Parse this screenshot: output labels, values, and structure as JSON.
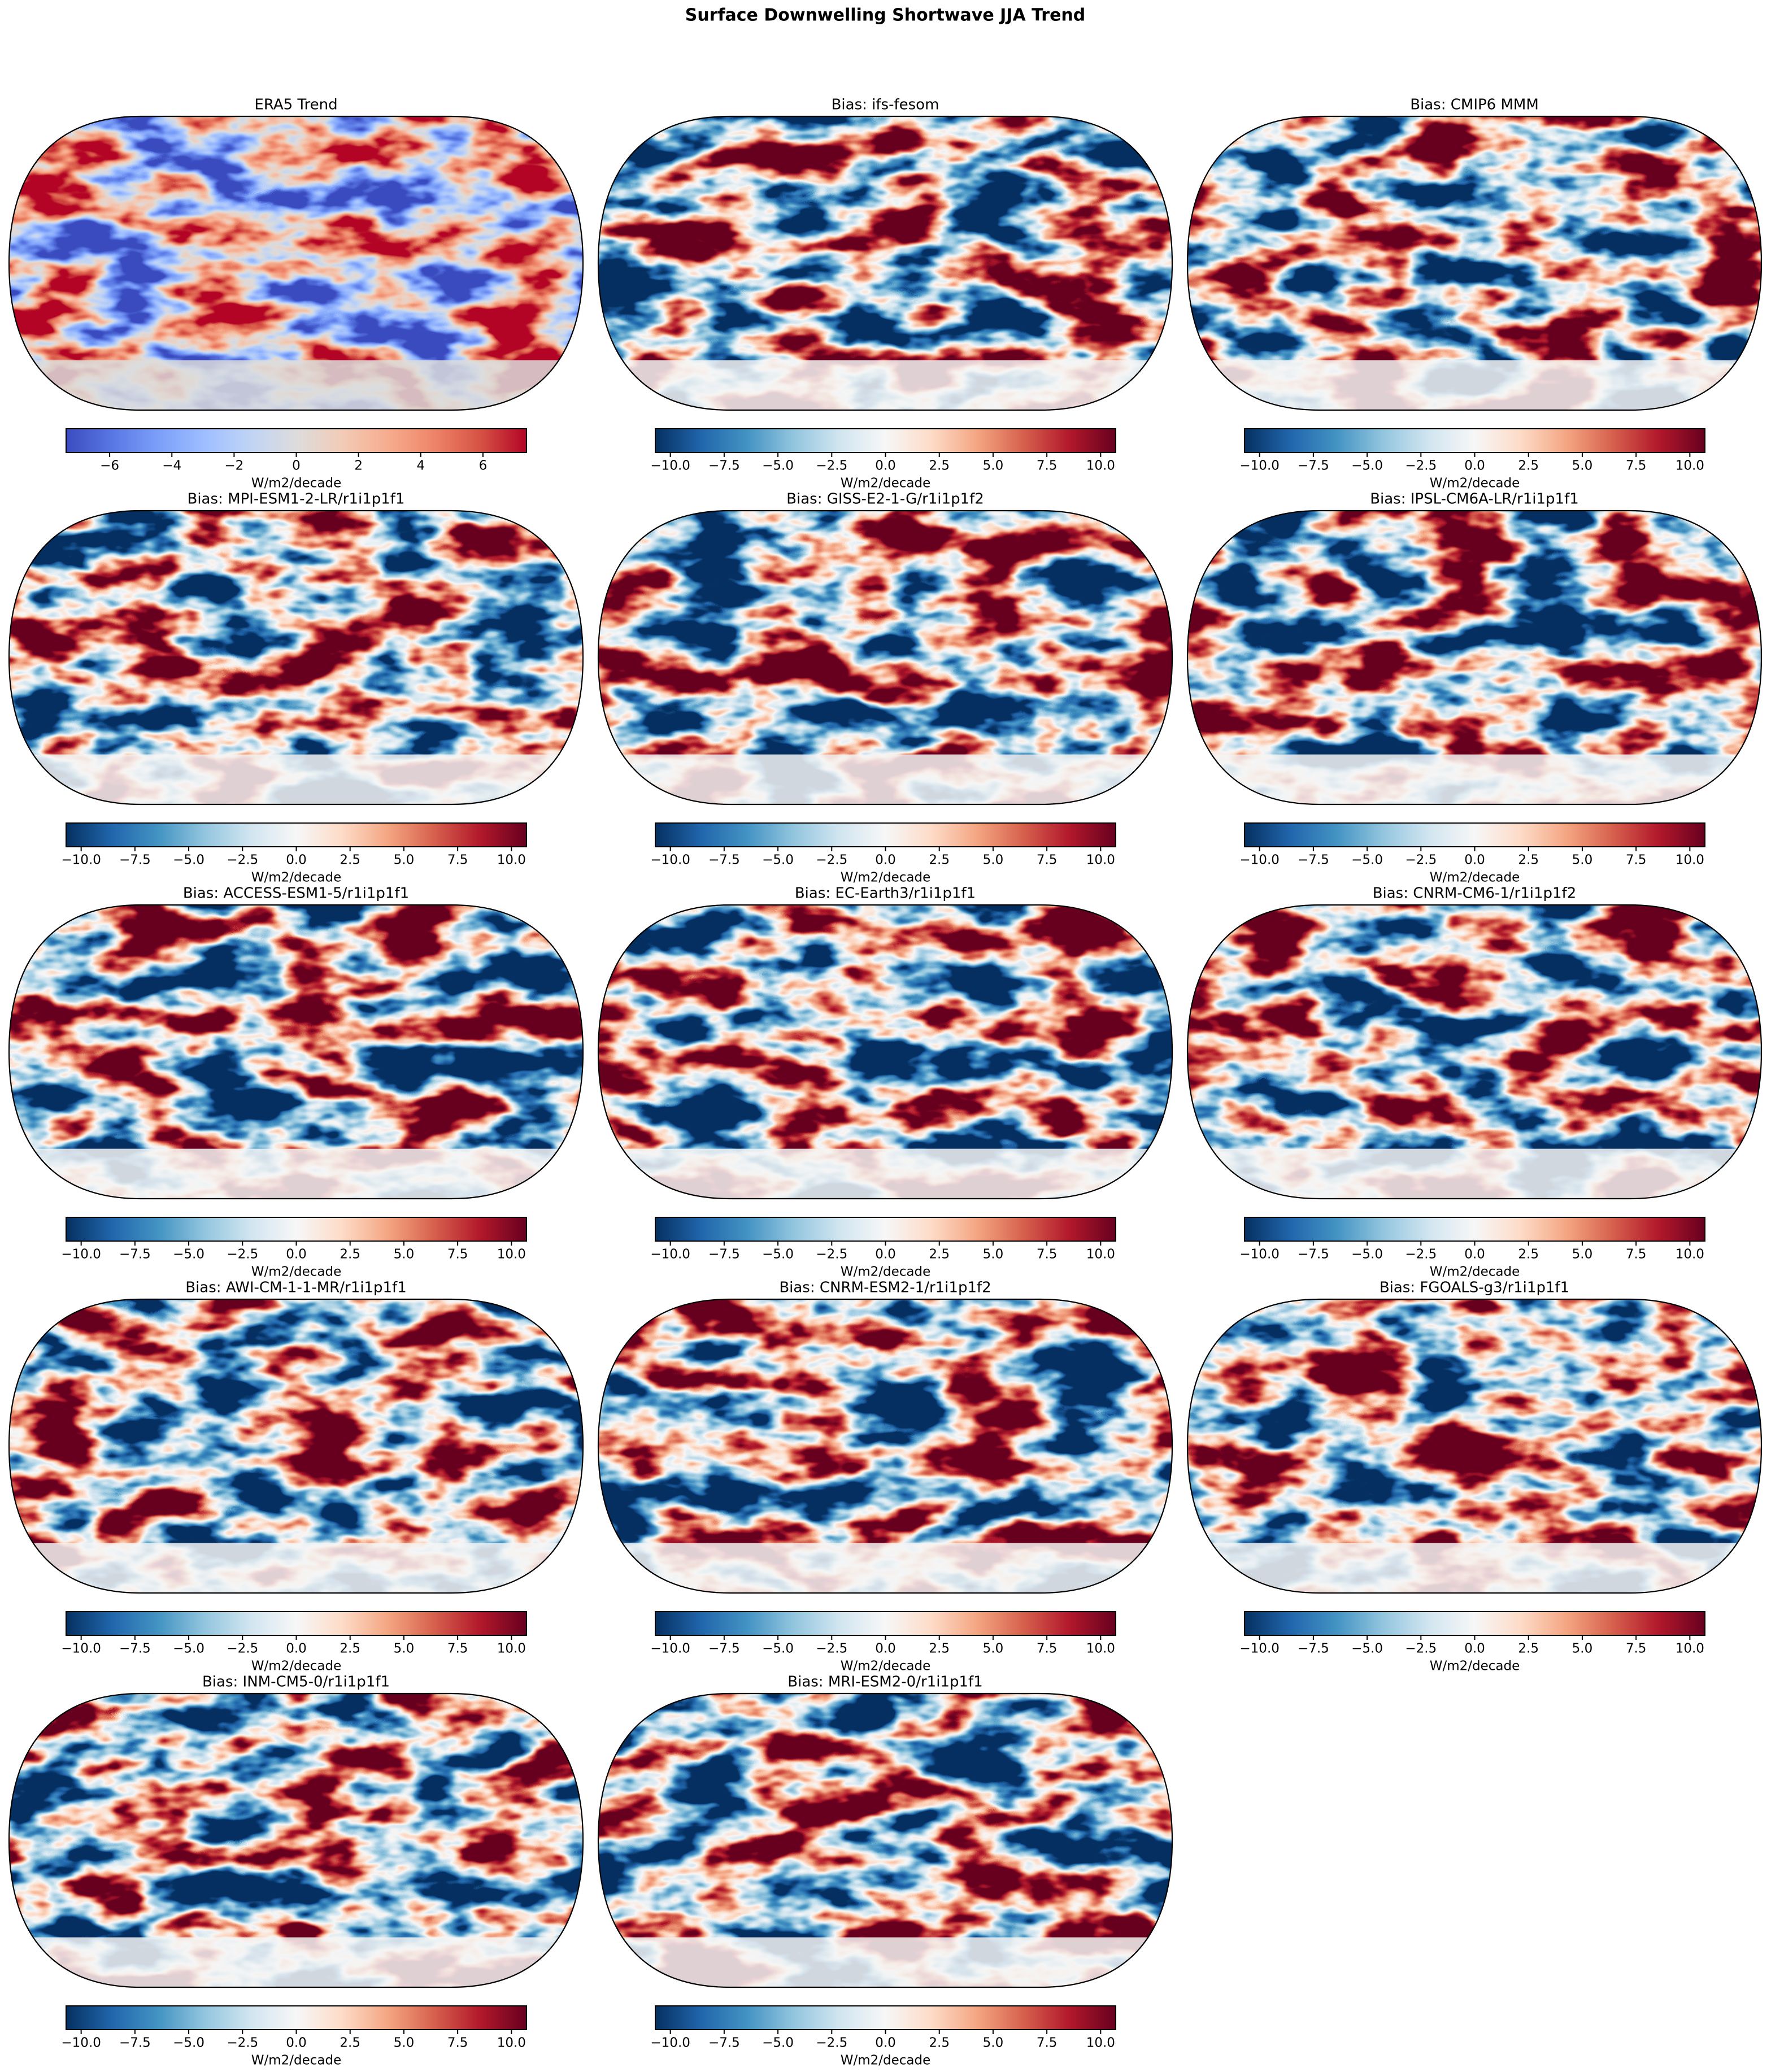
{
  "figure": {
    "title": "Surface Downwelling Shortwave JJA Trend",
    "panels": [
      {
        "title": "ERA5 Trend",
        "colormap": "coolwarm",
        "colorbar": {
          "label": "W/m2/decade",
          "lim": [
            -7.4,
            7.4
          ],
          "ticks": [
            {
              "value": -6,
              "label": "−6"
            },
            {
              "value": -4,
              "label": "−4"
            },
            {
              "value": -2,
              "label": "−2"
            },
            0,
            2,
            4,
            6
          ]
        }
      },
      {
        "title": "Bias: ifs-fesom",
        "colormap": "RdBu_r",
        "colorbar": {
          "label": "W/m2/decade",
          "lim": [
            -10.7,
            10.7
          ],
          "ticks": [
            {
              "value": -10,
              "label": "−10.0"
            },
            {
              "value": -7.5,
              "label": "−7.5"
            },
            {
              "value": -5,
              "label": "−5.0"
            },
            {
              "value": -2.5,
              "label": "−2.5"
            },
            {
              "value": 0,
              "label": "0.0"
            },
            2.5,
            {
              "value": 5,
              "label": "5.0"
            },
            7.5,
            {
              "value": 10,
              "label": "10.0"
            }
          ]
        }
      },
      {
        "title": "Bias: CMIP6 MMM",
        "colormap": "RdBu_r",
        "colorbar": {
          "label": "W/m2/decade",
          "lim": [
            -10.7,
            10.7
          ],
          "ticks": [
            {
              "value": -10,
              "label": "−10.0"
            },
            {
              "value": -7.5,
              "label": "−7.5"
            },
            {
              "value": -5,
              "label": "−5.0"
            },
            {
              "value": -2.5,
              "label": "−2.5"
            },
            {
              "value": 0,
              "label": "0.0"
            },
            2.5,
            {
              "value": 5,
              "label": "5.0"
            },
            7.5,
            {
              "value": 10,
              "label": "10.0"
            }
          ]
        }
      },
      {
        "title": "Bias: MPI-ESM1-2-LR/r1i1p1f1",
        "colormap": "RdBu_r",
        "colorbar": {
          "label": "W/m2/decade",
          "lim": [
            -10.7,
            10.7
          ],
          "ticks": [
            {
              "value": -10,
              "label": "−10.0"
            },
            {
              "value": -7.5,
              "label": "−7.5"
            },
            {
              "value": -5,
              "label": "−5.0"
            },
            {
              "value": -2.5,
              "label": "−2.5"
            },
            {
              "value": 0,
              "label": "0.0"
            },
            2.5,
            {
              "value": 5,
              "label": "5.0"
            },
            7.5,
            {
              "value": 10,
              "label": "10.0"
            }
          ]
        }
      },
      {
        "title": "Bias: GISS-E2-1-G/r1i1p1f2",
        "colormap": "RdBu_r",
        "colorbar": {
          "label": "W/m2/decade",
          "lim": [
            -10.7,
            10.7
          ],
          "ticks": [
            {
              "value": -10,
              "label": "−10.0"
            },
            {
              "value": -7.5,
              "label": "−7.5"
            },
            {
              "value": -5,
              "label": "−5.0"
            },
            {
              "value": -2.5,
              "label": "−2.5"
            },
            {
              "value": 0,
              "label": "0.0"
            },
            2.5,
            {
              "value": 5,
              "label": "5.0"
            },
            7.5,
            {
              "value": 10,
              "label": "10.0"
            }
          ]
        }
      },
      {
        "title": "Bias: IPSL-CM6A-LR/r1i1p1f1",
        "colormap": "RdBu_r",
        "colorbar": {
          "label": "W/m2/decade",
          "lim": [
            -10.7,
            10.7
          ],
          "ticks": [
            {
              "value": -10,
              "label": "−10.0"
            },
            {
              "value": -7.5,
              "label": "−7.5"
            },
            {
              "value": -5,
              "label": "−5.0"
            },
            {
              "value": -2.5,
              "label": "−2.5"
            },
            {
              "value": 0,
              "label": "0.0"
            },
            2.5,
            {
              "value": 5,
              "label": "5.0"
            },
            7.5,
            {
              "value": 10,
              "label": "10.0"
            }
          ]
        }
      },
      {
        "title": "Bias: ACCESS-ESM1-5/r1i1p1f1",
        "colormap": "RdBu_r",
        "colorbar": {
          "label": "W/m2/decade",
          "lim": [
            -10.7,
            10.7
          ],
          "ticks": [
            {
              "value": -10,
              "label": "−10.0"
            },
            {
              "value": -7.5,
              "label": "−7.5"
            },
            {
              "value": -5,
              "label": "−5.0"
            },
            {
              "value": -2.5,
              "label": "−2.5"
            },
            {
              "value": 0,
              "label": "0.0"
            },
            2.5,
            {
              "value": 5,
              "label": "5.0"
            },
            7.5,
            {
              "value": 10,
              "label": "10.0"
            }
          ]
        }
      },
      {
        "title": "Bias: EC-Earth3/r1i1p1f1",
        "colormap": "RdBu_r",
        "colorbar": {
          "label": "W/m2/decade",
          "lim": [
            -10.7,
            10.7
          ],
          "ticks": [
            {
              "value": -10,
              "label": "−10.0"
            },
            {
              "value": -7.5,
              "label": "−7.5"
            },
            {
              "value": -5,
              "label": "−5.0"
            },
            {
              "value": -2.5,
              "label": "−2.5"
            },
            {
              "value": 0,
              "label": "0.0"
            },
            2.5,
            {
              "value": 5,
              "label": "5.0"
            },
            7.5,
            {
              "value": 10,
              "label": "10.0"
            }
          ]
        }
      },
      {
        "title": "Bias: CNRM-CM6-1/r1i1p1f2",
        "colormap": "RdBu_r",
        "colorbar": {
          "label": "W/m2/decade",
          "lim": [
            -10.7,
            10.7
          ],
          "ticks": [
            {
              "value": -10,
              "label": "−10.0"
            },
            {
              "value": -7.5,
              "label": "−7.5"
            },
            {
              "value": -5,
              "label": "−5.0"
            },
            {
              "value": -2.5,
              "label": "−2.5"
            },
            {
              "value": 0,
              "label": "0.0"
            },
            2.5,
            {
              "value": 5,
              "label": "5.0"
            },
            7.5,
            {
              "value": 10,
              "label": "10.0"
            }
          ]
        }
      },
      {
        "title": "Bias: AWI-CM-1-1-MR/r1i1p1f1",
        "colormap": "RdBu_r",
        "colorbar": {
          "label": "W/m2/decade",
          "lim": [
            -10.7,
            10.7
          ],
          "ticks": [
            {
              "value": -10,
              "label": "−10.0"
            },
            {
              "value": -7.5,
              "label": "−7.5"
            },
            {
              "value": -5,
              "label": "−5.0"
            },
            {
              "value": -2.5,
              "label": "−2.5"
            },
            {
              "value": 0,
              "label": "0.0"
            },
            2.5,
            {
              "value": 5,
              "label": "5.0"
            },
            7.5,
            {
              "value": 10,
              "label": "10.0"
            }
          ]
        }
      },
      {
        "title": "Bias: CNRM-ESM2-1/r1i1p1f2",
        "colormap": "RdBu_r",
        "colorbar": {
          "label": "W/m2/decade",
          "lim": [
            -10.7,
            10.7
          ],
          "ticks": [
            {
              "value": -10,
              "label": "−10.0"
            },
            {
              "value": -7.5,
              "label": "−7.5"
            },
            {
              "value": -5,
              "label": "−5.0"
            },
            {
              "value": -2.5,
              "label": "−2.5"
            },
            {
              "value": 0,
              "label": "0.0"
            },
            2.5,
            {
              "value": 5,
              "label": "5.0"
            },
            7.5,
            {
              "value": 10,
              "label": "10.0"
            }
          ]
        }
      },
      {
        "title": "Bias: FGOALS-g3/r1i1p1f1",
        "colormap": "RdBu_r",
        "colorbar": {
          "label": "W/m2/decade",
          "lim": [
            -10.7,
            10.7
          ],
          "ticks": [
            {
              "value": -10,
              "label": "−10.0"
            },
            {
              "value": -7.5,
              "label": "−7.5"
            },
            {
              "value": -5,
              "label": "−5.0"
            },
            {
              "value": -2.5,
              "label": "−2.5"
            },
            {
              "value": 0,
              "label": "0.0"
            },
            2.5,
            {
              "value": 5,
              "label": "5.0"
            },
            7.5,
            {
              "value": 10,
              "label": "10.0"
            }
          ]
        }
      },
      {
        "title": "Bias: INM-CM5-0/r1i1p1f1",
        "colormap": "RdBu_r",
        "colorbar": {
          "label": "W/m2/decade",
          "lim": [
            -10.7,
            10.7
          ],
          "ticks": [
            {
              "value": -10,
              "label": "−10.0"
            },
            {
              "value": -7.5,
              "label": "−7.5"
            },
            {
              "value": -5,
              "label": "−5.0"
            },
            {
              "value": -2.5,
              "label": "−2.5"
            },
            {
              "value": 0,
              "label": "0.0"
            },
            2.5,
            {
              "value": 5,
              "label": "5.0"
            },
            7.5,
            {
              "value": 10,
              "label": "10.0"
            }
          ]
        }
      },
      {
        "title": "Bias: MRI-ESM2-0/r1i1p1f1",
        "colormap": "RdBu_r",
        "colorbar": {
          "label": "W/m2/decade",
          "lim": [
            -10.7,
            10.7
          ],
          "ticks": [
            {
              "value": -10,
              "label": "−10.0"
            },
            {
              "value": -7.5,
              "label": "−7.5"
            },
            {
              "value": -5,
              "label": "−5.0"
            },
            {
              "value": -2.5,
              "label": "−2.5"
            },
            {
              "value": 0,
              "label": "0.0"
            },
            2.5,
            {
              "value": 5,
              "label": "5.0"
            },
            7.5,
            {
              "value": 10,
              "label": "10.0"
            }
          ]
        }
      }
    ]
  }
}
